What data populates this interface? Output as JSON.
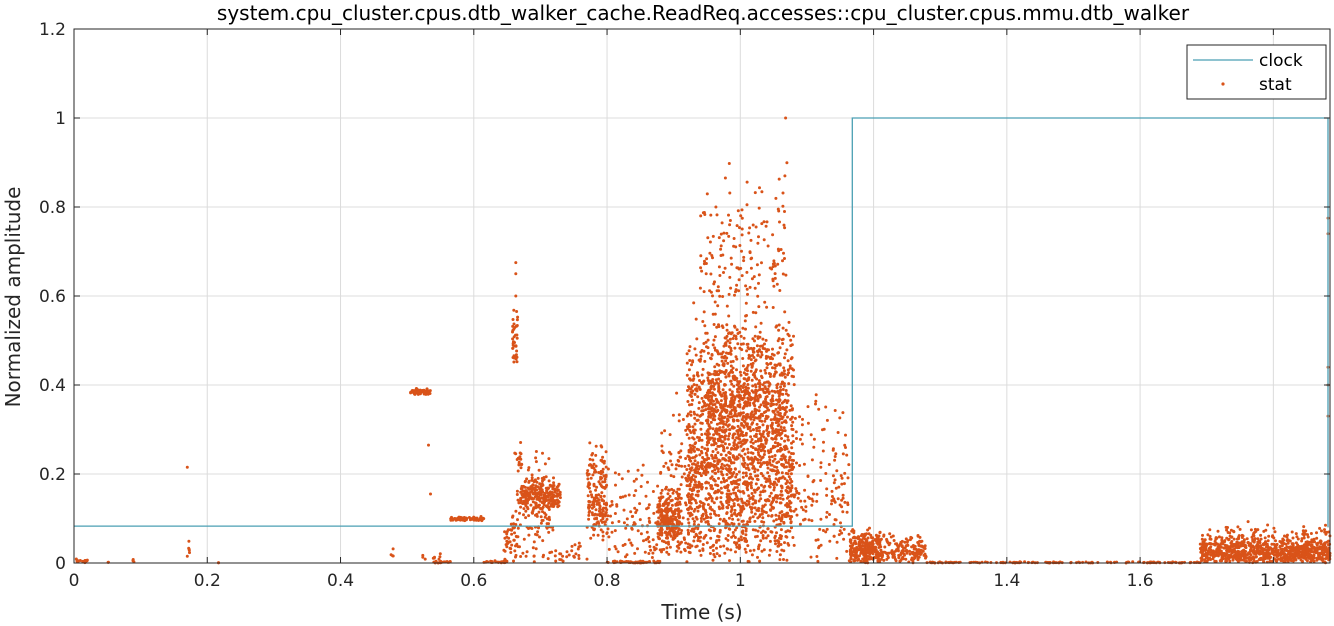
{
  "chart_data": {
    "type": "line",
    "title": "system.cpu_cluster.cpus.dtb_walker_cache.ReadReq.accesses::cpu_cluster.cpus.mmu.dtb_walker",
    "xlabel": "Time (s)",
    "ylabel": "Normalized amplitude",
    "xlim": [
      0,
      1.885
    ],
    "ylim": [
      0,
      1.2
    ],
    "xticks": [
      0,
      0.2,
      0.4,
      0.6,
      0.8,
      1,
      1.2,
      1.4,
      1.6,
      1.8
    ],
    "xtick_labels": [
      "0",
      "0.2",
      "0.4",
      "0.6",
      "0.8",
      "1",
      "1.2",
      "1.4",
      "1.6",
      "1.8"
    ],
    "yticks": [
      0,
      0.2,
      0.4,
      0.6,
      0.8,
      1,
      1.2
    ],
    "ytick_labels": [
      "0",
      "0.2",
      "0.4",
      "0.6",
      "0.8",
      "1",
      "1.2"
    ],
    "grid": true,
    "legend_position": "top-right",
    "colors": {
      "clock": "#4a9fb3",
      "stat": "#d95319"
    },
    "series": [
      {
        "name": "clock",
        "style": "line",
        "x": [
          0,
          1.168,
          1.168,
          1.882,
          1.882
        ],
        "y": [
          0.083,
          0.083,
          1.0,
          1.0,
          0.08
        ]
      },
      {
        "name": "stat",
        "style": "markers",
        "segments": [
          {
            "x0": 0.0,
            "x1": 0.02,
            "ymin": 0.0,
            "ymax": 0.012,
            "n": 15
          },
          {
            "x0": 0.05,
            "x1": 0.052,
            "ymin": 0.0,
            "ymax": 0.005,
            "n": 2
          },
          {
            "x0": 0.088,
            "x1": 0.09,
            "ymin": 0.0,
            "ymax": 0.02,
            "n": 4
          },
          {
            "x0": 0.17,
            "x1": 0.175,
            "ymin": 0.0,
            "ymax": 0.095,
            "n": 6
          },
          {
            "x0": 0.215,
            "x1": 0.217,
            "ymin": 0.0,
            "ymax": 0.003,
            "n": 2
          },
          {
            "x0": 0.475,
            "x1": 0.48,
            "ymin": 0.0,
            "ymax": 0.04,
            "n": 4
          },
          {
            "x0": 0.505,
            "x1": 0.535,
            "ymin": 0.378,
            "ymax": 0.395,
            "n": 60
          },
          {
            "x0": 0.52,
            "x1": 0.55,
            "ymin": 0.0,
            "ymax": 0.03,
            "n": 10
          },
          {
            "x0": 0.54,
            "x1": 0.565,
            "ymin": 0.0,
            "ymax": 0.005,
            "n": 20
          },
          {
            "x0": 0.565,
            "x1": 0.615,
            "ymin": 0.095,
            "ymax": 0.105,
            "n": 70
          },
          {
            "x0": 0.615,
            "x1": 0.65,
            "ymin": 0.0,
            "ymax": 0.005,
            "n": 30
          },
          {
            "x0": 0.645,
            "x1": 0.665,
            "ymin": 0.0,
            "ymax": 0.15,
            "n": 40
          },
          {
            "x0": 0.658,
            "x1": 0.666,
            "ymin": 0.45,
            "ymax": 0.58,
            "n": 40
          },
          {
            "x0": 0.666,
            "x1": 0.672,
            "ymin": 0.2,
            "ymax": 0.28,
            "n": 15
          },
          {
            "x0": 0.67,
            "x1": 0.73,
            "ymin": 0.12,
            "ymax": 0.2,
            "n": 250
          },
          {
            "x0": 0.66,
            "x1": 0.72,
            "ymin": 0.0,
            "ymax": 0.28,
            "n": 120
          },
          {
            "x0": 0.72,
            "x1": 0.77,
            "ymin": 0.0,
            "ymax": 0.05,
            "n": 25
          },
          {
            "x0": 0.77,
            "x1": 0.8,
            "ymin": 0.05,
            "ymax": 0.28,
            "n": 180
          },
          {
            "x0": 0.8,
            "x1": 0.88,
            "ymin": 0.0,
            "ymax": 0.005,
            "n": 60
          },
          {
            "x0": 0.8,
            "x1": 0.88,
            "ymin": 0.0,
            "ymax": 0.25,
            "n": 100
          },
          {
            "x0": 0.875,
            "x1": 0.91,
            "ymin": 0.05,
            "ymax": 0.17,
            "n": 200
          },
          {
            "x0": 0.88,
            "x1": 0.92,
            "ymin": 0.0,
            "ymax": 0.4,
            "n": 120
          },
          {
            "x0": 0.92,
            "x1": 1.08,
            "ymin": 0.0,
            "ymax": 0.6,
            "n": 1700
          },
          {
            "x0": 0.95,
            "x1": 1.07,
            "ymin": 0.25,
            "ymax": 0.55,
            "n": 500
          },
          {
            "x0": 0.94,
            "x1": 1.07,
            "ymin": 0.55,
            "ymax": 0.93,
            "n": 170
          },
          {
            "x0": 1.08,
            "x1": 1.165,
            "ymin": 0.0,
            "ymax": 0.45,
            "n": 150
          },
          {
            "x0": 1.165,
            "x1": 1.21,
            "ymin": 0.0,
            "ymax": 0.08,
            "n": 260
          },
          {
            "x0": 1.21,
            "x1": 1.28,
            "ymin": 0.0,
            "ymax": 0.07,
            "n": 160
          },
          {
            "x0": 1.28,
            "x1": 1.69,
            "ymin": 0.0,
            "ymax": 0.003,
            "n": 140
          },
          {
            "x0": 1.69,
            "x1": 1.885,
            "ymin": 0.0,
            "ymax": 0.07,
            "n": 900
          },
          {
            "x0": 1.7,
            "x1": 1.885,
            "ymin": 0.06,
            "ymax": 0.1,
            "n": 40
          }
        ],
        "highlights": [
          {
            "x": 0.17,
            "y": 0.215
          },
          {
            "x": 1.068,
            "y": 1.0
          },
          {
            "x": 1.882,
            "y": 0.775
          },
          {
            "x": 1.882,
            "y": 0.74
          },
          {
            "x": 1.882,
            "y": 0.44
          },
          {
            "x": 1.882,
            "y": 0.4
          },
          {
            "x": 1.882,
            "y": 0.33
          },
          {
            "x": 0.663,
            "y": 0.675
          },
          {
            "x": 0.663,
            "y": 0.65
          },
          {
            "x": 0.663,
            "y": 0.6
          },
          {
            "x": 0.532,
            "y": 0.265
          },
          {
            "x": 0.535,
            "y": 0.155
          }
        ]
      }
    ]
  }
}
